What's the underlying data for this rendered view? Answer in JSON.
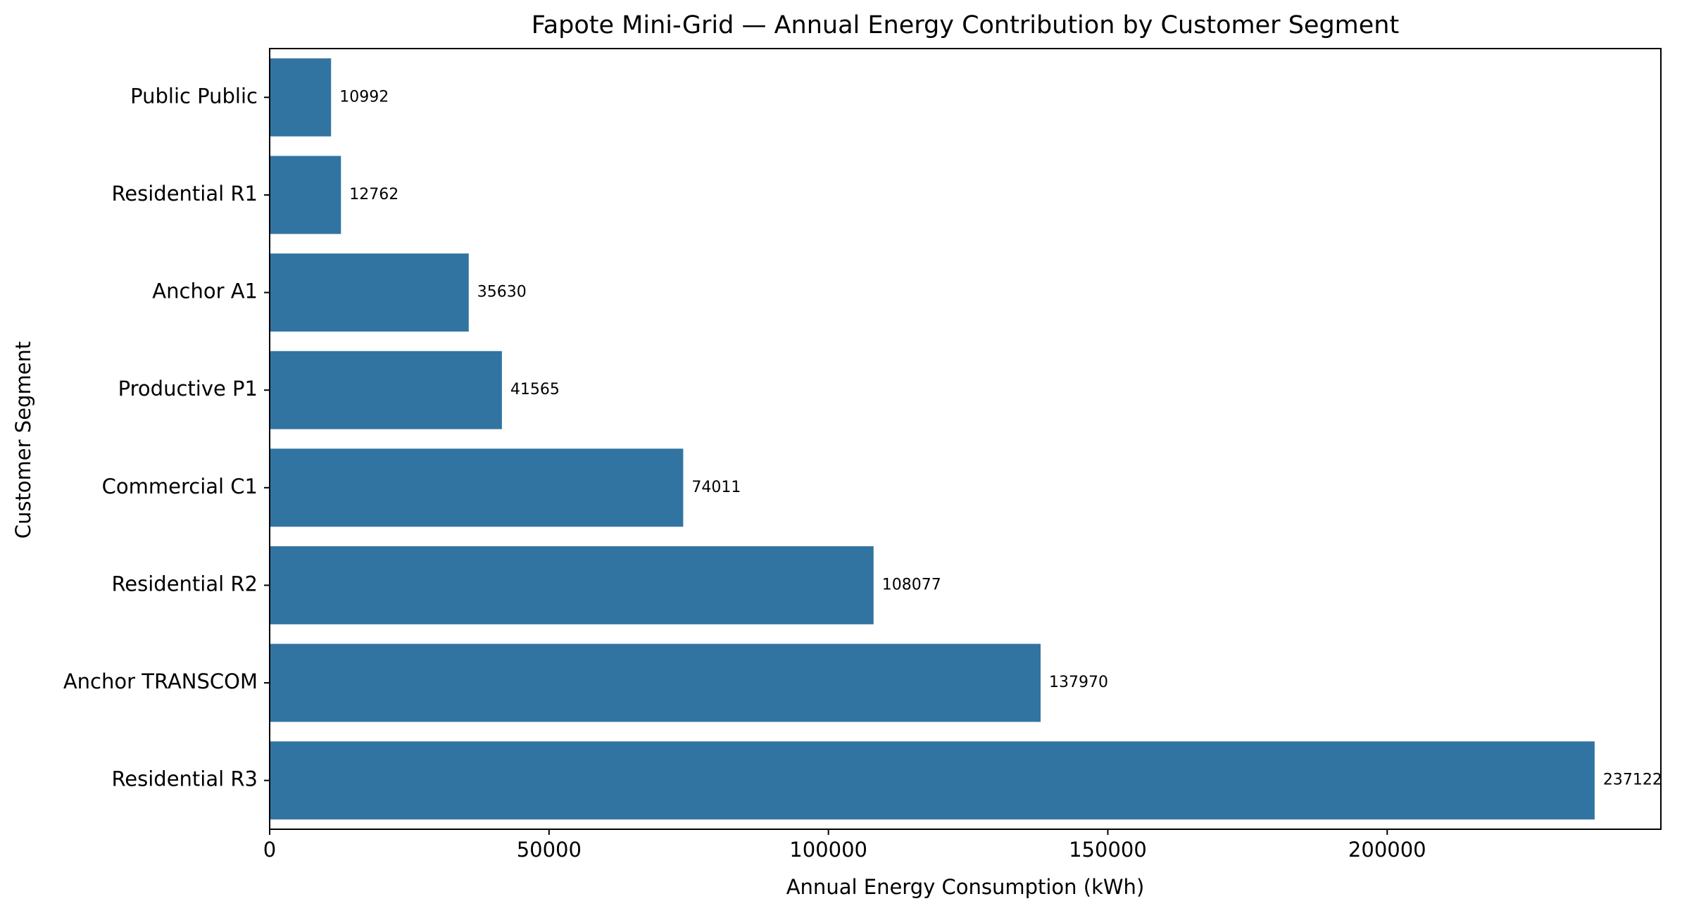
{
  "chart_data": {
    "type": "bar",
    "orientation": "horizontal",
    "title": "Fapote Mini-Grid — Annual Energy Contribution by Customer Segment",
    "xlabel": "Annual Energy Consumption (kWh)",
    "ylabel": "Customer Segment",
    "categories": [
      "Public Public",
      "Residential R1",
      "Anchor A1",
      "Productive P1",
      "Commercial C1",
      "Residential R2",
      "Anchor TRANSCOM",
      "Residential R3"
    ],
    "values": [
      10992,
      12762,
      35630,
      41565,
      74011,
      108077,
      137970,
      237122
    ],
    "xlim": [
      0,
      248978
    ],
    "xticks": [
      0,
      50000,
      100000,
      150000,
      200000
    ],
    "xtick_labels": [
      "0",
      "50000",
      "100000",
      "150000",
      "200000"
    ],
    "bar_color": "#3274a1",
    "grid": false,
    "legend": "none",
    "data_labels": true
  }
}
